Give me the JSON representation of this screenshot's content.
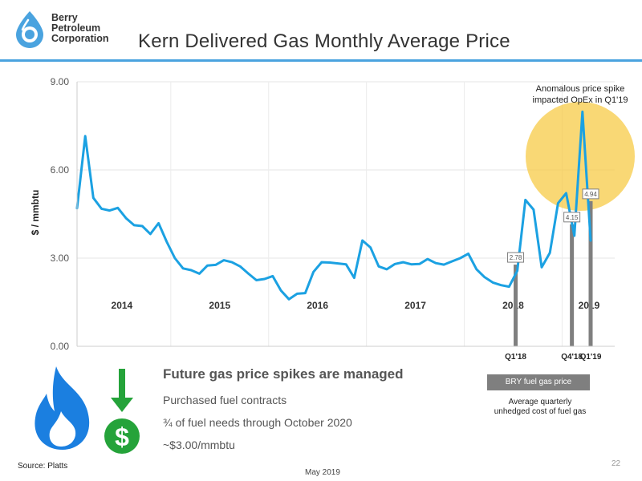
{
  "logo": {
    "line1": "Berry",
    "line2": "Petroleum",
    "line3": "Corporation"
  },
  "title": "Kern Delivered Gas Monthly Average Price",
  "chart_data": {
    "type": "line",
    "ylabel": "$ / mmbtu",
    "ylim": [
      0,
      9
    ],
    "yticks": [
      "0.00",
      "3.00",
      "6.00",
      "9.00"
    ],
    "year_labels": [
      "2014",
      "2015",
      "2016",
      "2017",
      "2018",
      "2019"
    ],
    "x": [
      0,
      1,
      2,
      3,
      4,
      5,
      6,
      7,
      8,
      9,
      10,
      11,
      12,
      13,
      14,
      15,
      16,
      17,
      18,
      19,
      20,
      21,
      22,
      23,
      24,
      25,
      26,
      27,
      28,
      29,
      30,
      31,
      32,
      33,
      34,
      35,
      36,
      37,
      38,
      39,
      40,
      41,
      42,
      43,
      44,
      45,
      46,
      47,
      48,
      49,
      50,
      51,
      52,
      53,
      54,
      55,
      56,
      57,
      58,
      59,
      60,
      61,
      62,
      63
    ],
    "values": [
      4.7,
      7.15,
      5.05,
      4.68,
      4.62,
      4.71,
      4.36,
      4.12,
      4.09,
      3.82,
      4.19,
      3.56,
      3.0,
      2.65,
      2.59,
      2.47,
      2.75,
      2.77,
      2.93,
      2.86,
      2.72,
      2.48,
      2.25,
      2.29,
      2.39,
      1.9,
      1.6,
      1.79,
      1.81,
      2.53,
      2.86,
      2.85,
      2.82,
      2.79,
      2.33,
      3.6,
      3.36,
      2.72,
      2.62,
      2.8,
      2.86,
      2.79,
      2.8,
      2.97,
      2.83,
      2.78,
      2.89,
      3.0,
      3.15,
      2.62,
      2.35,
      2.17,
      2.08,
      2.03,
      2.57,
      4.98,
      4.65,
      2.69,
      3.18,
      4.87,
      5.21,
      3.76,
      7.98,
      3.6
    ],
    "series": [
      {
        "name": "",
        "color": "#1ba1e2"
      }
    ],
    "fuel_bars": [
      {
        "label": "Q1'18",
        "value": 2.78,
        "value_label": "2.78",
        "x": 53.8
      },
      {
        "label": "Q4'18",
        "value": 4.15,
        "value_label": "4.15",
        "x": 60.7
      },
      {
        "label": "Q1'19",
        "value": 4.94,
        "value_label": "4.94",
        "x": 63.0
      }
    ],
    "annotation": {
      "line1": "Anomalous price spike",
      "line2": "impacted OpEx in Q1'19"
    },
    "legend": {
      "box": "BRY fuel gas price",
      "note_line1": "Average quarterly",
      "note_line2": "unhedged cost of fuel gas"
    },
    "grid": true
  },
  "text": {
    "heading": "Future gas price spikes are managed",
    "bullets": [
      "Purchased fuel contracts",
      "¾ of fuel needs through October 2020",
      "~$3.00/mmbtu"
    ]
  },
  "footer": {
    "source": "Source: Platts",
    "date": "May 2019",
    "page": "22"
  },
  "colors": {
    "accent": "#4aa3df",
    "line": "#1ba1e2",
    "bar": "#7f7f7f",
    "highlight": "#f7c83b",
    "green": "#25a33a",
    "flame": "#1b7fe0"
  },
  "icons": {
    "logo": "water-drop-icon",
    "flame": "gas-flame-icon",
    "dollar": "dollar-coin-icon",
    "arrow": "down-arrow-icon"
  }
}
